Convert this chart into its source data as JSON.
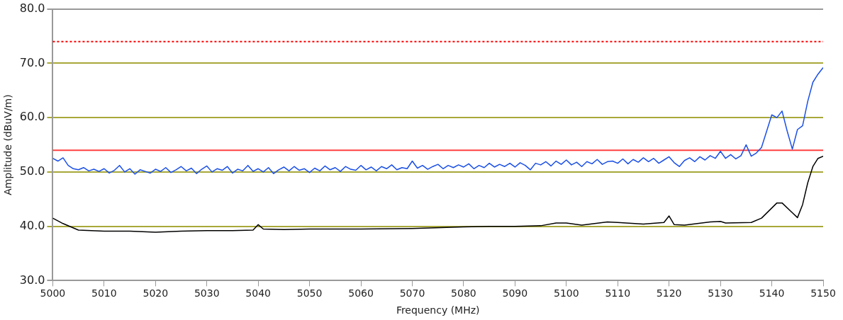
{
  "chart_data": {
    "type": "line",
    "xlabel": "Frequency (MHz)",
    "ylabel": "Amplitude (dBuV/m)",
    "xlim": [
      5000,
      5150
    ],
    "xticks": [
      5000,
      5010,
      5020,
      5030,
      5040,
      5050,
      5060,
      5070,
      5080,
      5090,
      5100,
      5110,
      5120,
      5130,
      5140,
      5150
    ],
    "ylim": [
      30,
      80
    ],
    "yticks": [
      {
        "value": 30,
        "label": "30.0"
      },
      {
        "value": 40,
        "label": "40.0"
      },
      {
        "value": 50,
        "label": "50.0"
      },
      {
        "value": 60,
        "label": "60.0"
      },
      {
        "value": 70,
        "label": "70.0"
      },
      {
        "value": 80,
        "label": "80.0"
      }
    ],
    "grid": "y",
    "legend": false,
    "marker": "none",
    "line_style": "solid",
    "ref_lines": [
      {
        "axis": "y",
        "value": 74,
        "color": "#ff0000",
        "line_style": "dotted"
      },
      {
        "axis": "y",
        "value": 54,
        "color": "#ff4040",
        "line_style": "solid"
      }
    ],
    "series": [
      {
        "color": "#1a4fe6",
        "x": [
          5000,
          5001,
          5002,
          5003,
          5004,
          5005,
          5006,
          5007,
          5008,
          5009,
          5010,
          5011,
          5012,
          5013,
          5014,
          5015,
          5016,
          5017,
          5018,
          5019,
          5020,
          5021,
          5022,
          5023,
          5024,
          5025,
          5026,
          5027,
          5028,
          5029,
          5030,
          5031,
          5032,
          5033,
          5034,
          5035,
          5036,
          5037,
          5038,
          5039,
          5040,
          5041,
          5042,
          5043,
          5044,
          5045,
          5046,
          5047,
          5048,
          5049,
          5050,
          5051,
          5052,
          5053,
          5054,
          5055,
          5056,
          5057,
          5058,
          5059,
          5060,
          5061,
          5062,
          5063,
          5064,
          5065,
          5066,
          5067,
          5068,
          5069,
          5070,
          5071,
          5072,
          5073,
          5074,
          5075,
          5076,
          5077,
          5078,
          5079,
          5080,
          5081,
          5082,
          5083,
          5084,
          5085,
          5086,
          5087,
          5088,
          5089,
          5090,
          5091,
          5092,
          5093,
          5094,
          5095,
          5096,
          5097,
          5098,
          5099,
          5100,
          5101,
          5102,
          5103,
          5104,
          5105,
          5106,
          5107,
          5108,
          5109,
          5110,
          5111,
          5112,
          5113,
          5114,
          5115,
          5116,
          5117,
          5118,
          5119,
          5120,
          5121,
          5122,
          5123,
          5124,
          5125,
          5126,
          5127,
          5128,
          5129,
          5130,
          5131,
          5132,
          5133,
          5134,
          5135,
          5136,
          5137,
          5138,
          5139,
          5140,
          5141,
          5142,
          5143,
          5144,
          5145,
          5146,
          5147,
          5148,
          5149,
          5150
        ],
        "values": [
          52.5,
          52,
          52.6,
          51.2,
          50.6,
          50.4,
          50.8,
          50.2,
          50.5,
          50.1,
          50.6,
          49.8,
          50.3,
          51.2,
          50.0,
          50.6,
          49.6,
          50.4,
          50.1,
          49.8,
          50.5,
          50.1,
          50.8,
          49.9,
          50.4,
          51.0,
          50.2,
          50.7,
          49.7,
          50.5,
          51.1,
          50.0,
          50.6,
          50.3,
          51.0,
          49.8,
          50.5,
          50.2,
          51.2,
          50.1,
          50.6,
          50.0,
          50.8,
          49.7,
          50.4,
          50.9,
          50.2,
          51.0,
          50.3,
          50.6,
          49.9,
          50.7,
          50.2,
          51.1,
          50.4,
          50.8,
          50.1,
          51.0,
          50.5,
          50.3,
          51.2,
          50.4,
          50.9,
          50.2,
          51.0,
          50.6,
          51.3,
          50.4,
          50.8,
          50.6,
          52.0,
          50.7,
          51.2,
          50.5,
          51.0,
          51.4,
          50.6,
          51.2,
          50.8,
          51.3,
          50.9,
          51.5,
          50.6,
          51.2,
          50.8,
          51.6,
          50.9,
          51.4,
          51.0,
          51.6,
          50.9,
          51.7,
          51.2,
          50.4,
          51.6,
          51.3,
          51.9,
          51.1,
          52.0,
          51.4,
          52.2,
          51.3,
          51.8,
          51.0,
          51.9,
          51.5,
          52.3,
          51.4,
          51.9,
          52.0,
          51.6,
          52.4,
          51.5,
          52.3,
          51.8,
          52.6,
          51.9,
          52.5,
          51.6,
          52.2,
          52.8,
          51.7,
          51.0,
          52.1,
          52.6,
          51.9,
          52.8,
          52.2,
          53.0,
          52.5,
          53.8,
          52.5,
          53.2,
          52.4,
          53.0,
          55.0,
          52.9,
          53.5,
          54.5,
          57.5,
          60.5,
          60.0,
          61.2,
          57.5,
          54.2,
          57.8,
          58.5,
          63.0,
          66.5,
          68.0,
          69.2
        ]
      },
      {
        "color": "#000000",
        "x": [
          5000,
          5002,
          5005,
          5010,
          5015,
          5020,
          5025,
          5030,
          5035,
          5039,
          5040,
          5041,
          5045,
          5050,
          5060,
          5070,
          5080,
          5085,
          5090,
          5095,
          5098,
          5100,
          5103,
          5108,
          5110,
          5115,
          5119,
          5120,
          5121,
          5123,
          5128,
          5130,
          5131,
          5136,
          5138,
          5141,
          5142,
          5144,
          5145,
          5146,
          5147,
          5148,
          5149,
          5150
        ],
        "values": [
          41.5,
          40.5,
          39.3,
          39.1,
          39.1,
          38.9,
          39.1,
          39.2,
          39.2,
          39.3,
          40.3,
          39.5,
          39.4,
          39.5,
          39.5,
          39.6,
          39.9,
          40.0,
          40.0,
          40.1,
          40.6,
          40.6,
          40.2,
          40.8,
          40.7,
          40.4,
          40.7,
          41.9,
          40.3,
          40.2,
          40.8,
          40.9,
          40.6,
          40.7,
          41.5,
          44.3,
          44.3,
          42.5,
          41.6,
          44.0,
          48.0,
          51.0,
          52.5,
          52.9
        ]
      }
    ]
  }
}
